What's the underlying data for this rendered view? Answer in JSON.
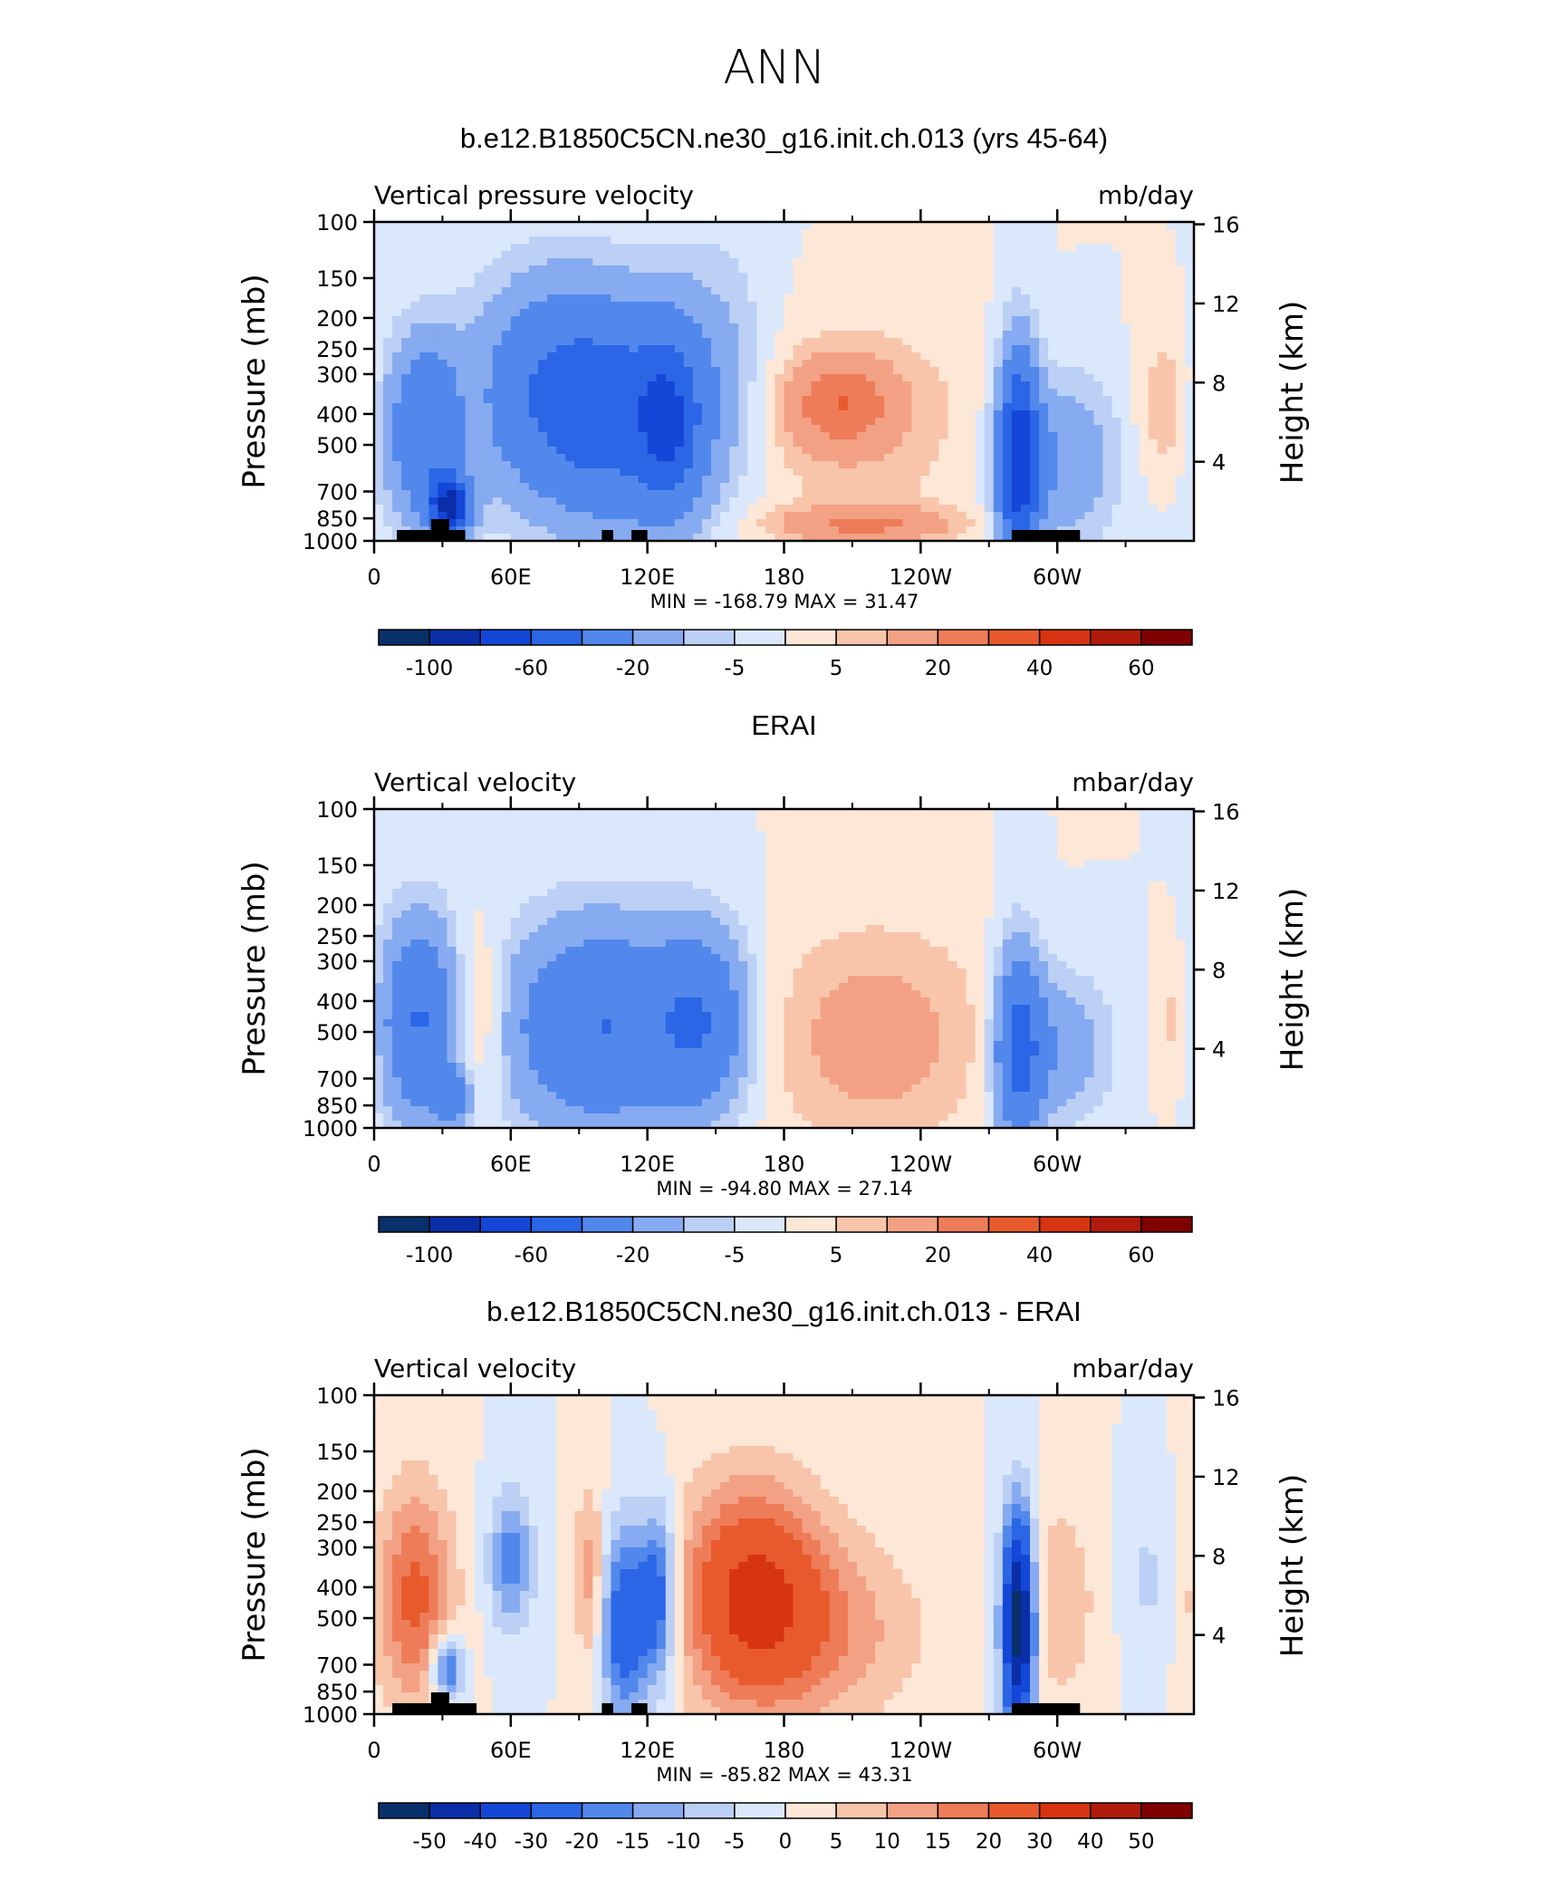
{
  "figure": {
    "title": "ANN"
  },
  "colors": {
    "blues": [
      "#08306b",
      "#0a2ea8",
      "#1446d8",
      "#2b66e6",
      "#5288ec",
      "#87abf0",
      "#bcd0f6",
      "#dbe8fb"
    ],
    "reds": [
      "#fde7d7",
      "#f8c5ab",
      "#f3a184",
      "#ee7c58",
      "#e85a2c",
      "#d73412",
      "#b01b0c",
      "#800000"
    ],
    "terrain": "#000000"
  },
  "chart_data": [
    {
      "type": "heatmap",
      "panel_title": "b.e12.B1850C5CN.ne30_g16.init.ch.013 (yrs 45-64)",
      "left_string": "Vertical pressure velocity",
      "right_string": "mb/day",
      "ylabel": "Pressure (mb)",
      "ylabel_right": "Height (km)",
      "x_ticks": [
        "0",
        "60E",
        "120E",
        "180",
        "120W",
        "60W"
      ],
      "y_ticks": [
        "100",
        "150",
        "200",
        "250",
        "300",
        "400",
        "500",
        "700",
        "850",
        "1000"
      ],
      "height_ticks": [
        "16",
        "12",
        "8",
        "4"
      ],
      "min_max_text": "MIN = -168.79   MAX =   31.47",
      "colorbar_labels": [
        "-100",
        "-60",
        "-20",
        "-5",
        "5",
        "20",
        "40",
        "60"
      ],
      "blobs": [
        {
          "lon": 25,
          "p": 450,
          "w": 14,
          "h": 260,
          "v": -40
        },
        {
          "lon": 33,
          "p": 780,
          "w": 6,
          "h": 120,
          "v": -80
        },
        {
          "lon": 40,
          "p": 420,
          "w": 8,
          "h": 200,
          "v": 12
        },
        {
          "lon": 75,
          "p": 330,
          "w": 22,
          "h": 240,
          "v": -30
        },
        {
          "lon": 110,
          "p": 400,
          "w": 25,
          "h": 290,
          "v": -45
        },
        {
          "lon": 130,
          "p": 440,
          "w": 9,
          "h": 230,
          "v": -35
        },
        {
          "lon": 150,
          "p": 300,
          "w": 18,
          "h": 300,
          "v": -10
        },
        {
          "lon": 210,
          "p": 420,
          "w": 40,
          "h": 300,
          "v": 9
        },
        {
          "lon": 205,
          "p": 370,
          "w": 16,
          "h": 90,
          "v": 22
        },
        {
          "lon": 215,
          "p": 890,
          "w": 28,
          "h": 90,
          "v": 20
        },
        {
          "lon": 283,
          "p": 560,
          "w": 6,
          "h": 400,
          "v": -70
        },
        {
          "lon": 300,
          "p": 560,
          "w": 18,
          "h": 300,
          "v": -20
        },
        {
          "lon": 348,
          "p": 380,
          "w": 9,
          "h": 160,
          "v": 10
        }
      ],
      "terrain": [
        [
          10,
          40
        ],
        [
          100,
          105
        ],
        [
          113,
          120
        ],
        [
          280,
          310
        ]
      ]
    },
    {
      "type": "heatmap",
      "panel_title": "ERAI",
      "left_string": "Vertical velocity",
      "right_string": "mbar/day",
      "ylabel": "Pressure (mb)",
      "ylabel_right": "Height (km)",
      "x_ticks": [
        "0",
        "60E",
        "120E",
        "180",
        "120W",
        "60W"
      ],
      "y_ticks": [
        "100",
        "150",
        "200",
        "250",
        "300",
        "400",
        "500",
        "700",
        "850",
        "1000"
      ],
      "height_ticks": [
        "16",
        "12",
        "8",
        "4"
      ],
      "min_max_text": "MIN = -94.80   MAX =   27.14",
      "colorbar_labels": [
        "-100",
        "-60",
        "-20",
        "-5",
        "5",
        "20",
        "40",
        "60"
      ],
      "blobs": [
        {
          "lon": 20,
          "p": 460,
          "w": 12,
          "h": 300,
          "v": -40
        },
        {
          "lon": 35,
          "p": 800,
          "w": 5,
          "h": 110,
          "v": -30
        },
        {
          "lon": 45,
          "p": 450,
          "w": 9,
          "h": 260,
          "v": 14
        },
        {
          "lon": 100,
          "p": 480,
          "w": 30,
          "h": 330,
          "v": -40
        },
        {
          "lon": 145,
          "p": 460,
          "w": 14,
          "h": 260,
          "v": -30
        },
        {
          "lon": 220,
          "p": 520,
          "w": 35,
          "h": 380,
          "v": 14
        },
        {
          "lon": 283,
          "p": 560,
          "w": 7,
          "h": 360,
          "v": -45
        },
        {
          "lon": 300,
          "p": 560,
          "w": 16,
          "h": 260,
          "v": -18
        },
        {
          "lon": 352,
          "p": 460,
          "w": 6,
          "h": 200,
          "v": 8
        }
      ],
      "terrain": []
    },
    {
      "type": "heatmap",
      "panel_title": "b.e12.B1850C5CN.ne30_g16.init.ch.013 - ERAI",
      "left_string": "Vertical velocity",
      "right_string": "mbar/day",
      "ylabel": "Pressure (mb)",
      "ylabel_right": "Height (km)",
      "x_ticks": [
        "0",
        "60E",
        "120E",
        "180",
        "120W",
        "60W"
      ],
      "y_ticks": [
        "100",
        "150",
        "200",
        "250",
        "300",
        "400",
        "500",
        "700",
        "850",
        "1000"
      ],
      "height_ticks": [
        "16",
        "12",
        "8",
        "4"
      ],
      "min_max_text": "MIN = -85.82   MAX =   43.31",
      "colorbar_labels": [
        "-50",
        "-40",
        "-30",
        "-20",
        "-15",
        "-10",
        "-5",
        "0",
        "5",
        "10",
        "15",
        "20",
        "30",
        "40",
        "50"
      ],
      "blobs": [
        {
          "lon": 18,
          "p": 430,
          "w": 12,
          "h": 330,
          "v": 22
        },
        {
          "lon": 32,
          "p": 720,
          "w": 5,
          "h": 140,
          "v": -25
        },
        {
          "lon": 60,
          "p": 330,
          "w": 7,
          "h": 140,
          "v": -18
        },
        {
          "lon": 95,
          "p": 380,
          "w": 5,
          "h": 240,
          "v": 14
        },
        {
          "lon": 110,
          "p": 520,
          "w": 8,
          "h": 330,
          "v": -28
        },
        {
          "lon": 125,
          "p": 420,
          "w": 6,
          "h": 230,
          "v": -25
        },
        {
          "lon": 165,
          "p": 420,
          "w": 22,
          "h": 320,
          "v": 30
        },
        {
          "lon": 200,
          "p": 550,
          "w": 30,
          "h": 350,
          "v": 12
        },
        {
          "lon": 283,
          "p": 520,
          "w": 5,
          "h": 380,
          "v": -60
        },
        {
          "lon": 300,
          "p": 450,
          "w": 12,
          "h": 300,
          "v": 10
        },
        {
          "lon": 340,
          "p": 380,
          "w": 8,
          "h": 200,
          "v": -6
        }
      ],
      "terrain": [
        [
          8,
          45
        ],
        [
          100,
          105
        ],
        [
          113,
          120
        ],
        [
          280,
          310
        ]
      ]
    }
  ]
}
